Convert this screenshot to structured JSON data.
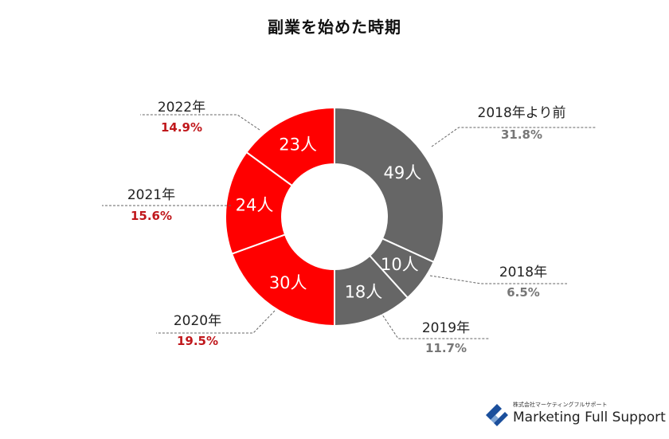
{
  "title": "副業を始めた時期",
  "chart_data": {
    "type": "donut",
    "unit": "人",
    "colors": {
      "gray": "#666666",
      "red": "#ff0000",
      "pct_gray": "#777777",
      "pct_red": "#c0181c"
    },
    "slices": [
      {
        "label": "2018年より前",
        "value": 49,
        "pct": "31.8%",
        "color": "gray"
      },
      {
        "label": "2018年",
        "value": 10,
        "pct": "6.5%",
        "color": "gray"
      },
      {
        "label": "2019年",
        "value": 18,
        "pct": "11.7%",
        "color": "gray"
      },
      {
        "label": "2020年",
        "value": 30,
        "pct": "19.5%",
        "color": "red"
      },
      {
        "label": "2021年",
        "value": 24,
        "pct": "15.6%",
        "color": "red"
      },
      {
        "label": "2022年",
        "value": 23,
        "pct": "14.9%",
        "color": "red"
      }
    ]
  },
  "logo": {
    "subtext": "株式会社マーケティングフルサポート",
    "name": "Marketing Full Support",
    "icon": "mfs-logo-icon"
  }
}
